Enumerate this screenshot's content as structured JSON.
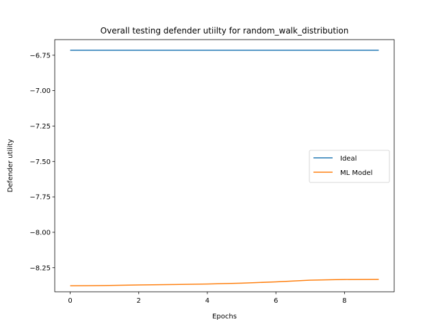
{
  "chart_data": {
    "type": "line",
    "title": "Overall testing defender utiilty for random_walk_distribution",
    "xlabel": "Epochs",
    "ylabel": "Defender utility",
    "xlim": [
      -0.45,
      9.45
    ],
    "ylim": [
      -8.42,
      -6.64
    ],
    "xticks": [
      0,
      2,
      4,
      6,
      8
    ],
    "xtick_labels": [
      "0",
      "2",
      "4",
      "6",
      "8"
    ],
    "yticks": [
      -6.75,
      -7.0,
      -7.25,
      -7.5,
      -7.75,
      -8.0,
      -8.25
    ],
    "ytick_labels": [
      "−6.75",
      "−7.00",
      "−7.25",
      "−7.50",
      "−7.75",
      "−8.00",
      "−8.25"
    ],
    "grid": false,
    "legend_position": "center-right",
    "series": [
      {
        "name": "Ideal",
        "color": "#1f77b4",
        "x": [
          0,
          1,
          2,
          3,
          4,
          5,
          6,
          7,
          8,
          9
        ],
        "values": [
          -6.715,
          -6.715,
          -6.715,
          -6.715,
          -6.715,
          -6.715,
          -6.715,
          -6.715,
          -6.715,
          -6.715
        ]
      },
      {
        "name": "ML Model",
        "color": "#ff7f0e",
        "x": [
          0,
          1,
          2,
          3,
          4,
          5,
          6,
          7,
          8,
          9
        ],
        "values": [
          -8.378,
          -8.376,
          -8.372,
          -8.369,
          -8.365,
          -8.359,
          -8.35,
          -8.338,
          -8.333,
          -8.332
        ]
      }
    ]
  }
}
